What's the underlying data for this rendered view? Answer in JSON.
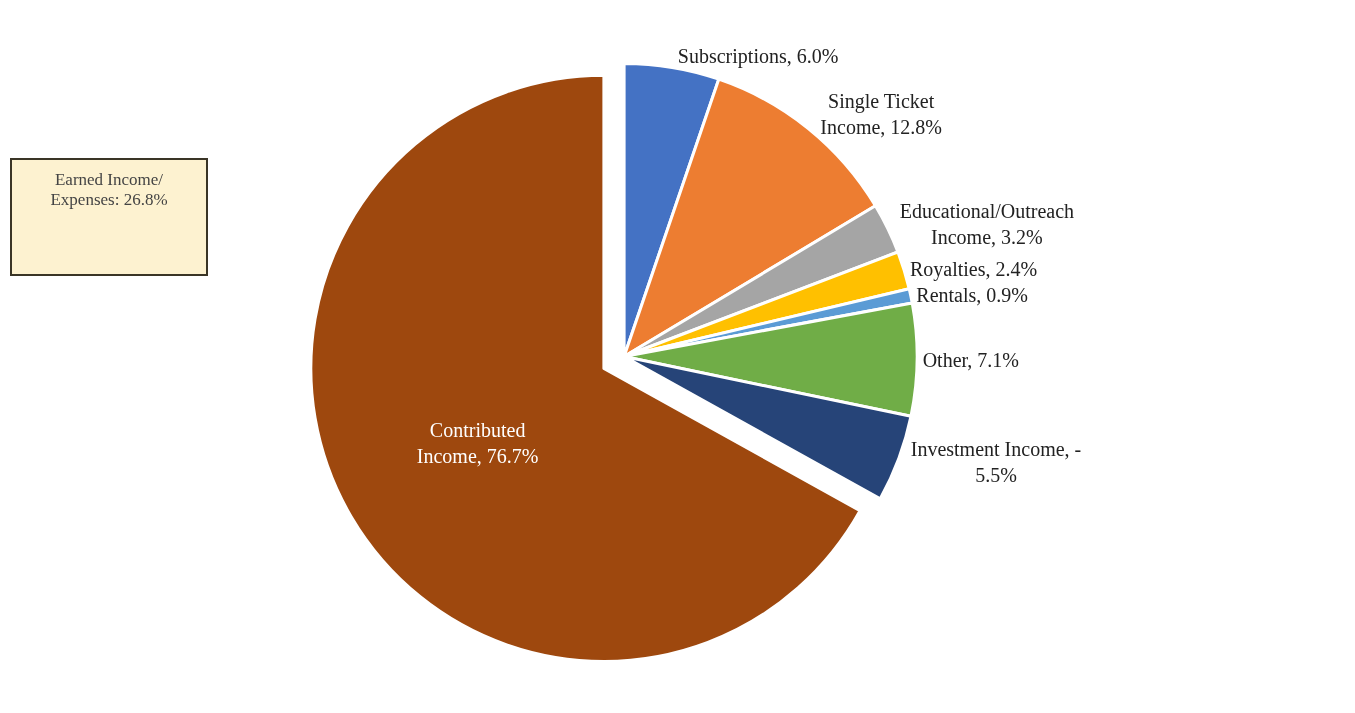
{
  "chart_data": {
    "type": "pie",
    "categories": [
      "Subscriptions",
      "Single Ticket Income",
      "Educational/Outreach Income",
      "Royalties",
      "Rentals",
      "Other",
      "Investment Income, -",
      "Contributed Income"
    ],
    "values": [
      6.0,
      12.8,
      3.2,
      2.4,
      0.9,
      7.1,
      5.5,
      76.7
    ],
    "value_labels": [
      "6.0%",
      "12.8%",
      "3.2%",
      "2.4%",
      "0.9%",
      "7.1%",
      "5.5%",
      "76.7%"
    ],
    "colors": [
      "#4472c4",
      "#ed7d31",
      "#a5a5a5",
      "#ffc000",
      "#5b9bd5",
      "#70ad47",
      "#264478",
      "#9e480e"
    ],
    "annotations": [
      "Earned Income/ Expenses:  26.8%"
    ],
    "legend": false
  }
}
